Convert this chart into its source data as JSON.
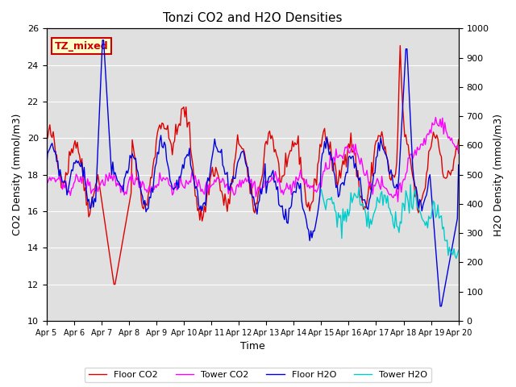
{
  "title": "Tonzi CO2 and H2O Densities",
  "xlabel": "Time",
  "ylabel_left": "CO2 Density (mmol/m3)",
  "ylabel_right": "H2O Density (mmol/m3)",
  "ylim_left": [
    10,
    26
  ],
  "ylim_right": [
    0,
    1000
  ],
  "annotation": "TZ_mixed",
  "annotation_color": "#cc0000",
  "annotation_bg": "#ffffcc",
  "legend": [
    "Floor CO2",
    "Tower CO2",
    "Floor H2O",
    "Tower H2O"
  ],
  "colors": {
    "floor_co2": "#dd0000",
    "tower_co2": "#ff00ff",
    "floor_h2o": "#0000dd",
    "tower_h2o": "#00cccc"
  },
  "bg_color": "#e0e0e0",
  "xtick_labels": [
    "Apr 5",
    "Apr 6",
    "Apr 7",
    "Apr 8",
    "Apr 9",
    "Apr 10",
    "Apr 11",
    "Apr 12",
    "Apr 13",
    "Apr 14",
    "Apr 15",
    "Apr 16",
    "Apr 17",
    "Apr 18",
    "Apr 19",
    "Apr 20"
  ],
  "xtick_positions": [
    0,
    24,
    48,
    72,
    96,
    120,
    144,
    168,
    192,
    216,
    240,
    264,
    288,
    312,
    336,
    360
  ]
}
